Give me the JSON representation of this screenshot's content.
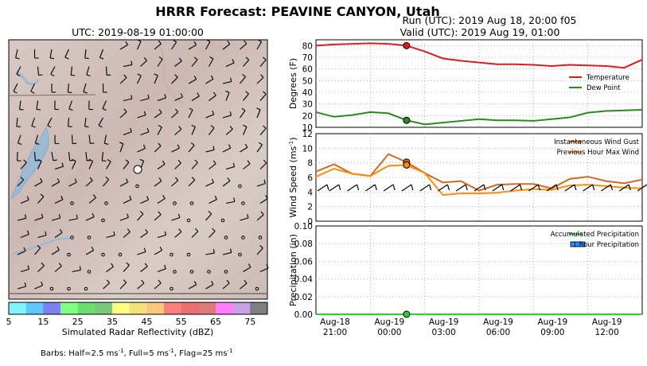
{
  "figure": {
    "title": "HRRR Forecast: PEAVINE CANYON, Utah",
    "run_line": "Run (UTC): 2019 Aug 18, 20:00 f05",
    "valid_line": "Valid (UTC): 2019 Aug 19, 01:00"
  },
  "map": {
    "title": "UTC: 2019-08-19 01:00:00",
    "colorbar_label": "Simulated Radar Reflectivity (dBZ)",
    "colorbar_ticks": [
      "5",
      "15",
      "25",
      "35",
      "45",
      "55",
      "65",
      "75"
    ],
    "colorbar_colors": [
      "#7ff4fb",
      "#5fc7fb",
      "#7f7ff4",
      "#80ff80",
      "#6edd6e",
      "#7dc87d",
      "#fdff7e",
      "#f3e17e",
      "#fdc77e",
      "#fe7e7e",
      "#e97171",
      "#dd7a7a",
      "#fe7efe",
      "#c7a1e2",
      "#7f7f7f"
    ],
    "barb_note_prefix": "Barbs: Half=2.5 ms",
    "barb_note_half_sup": "-1",
    "barb_note_mid": ", Full=5 ms",
    "barb_note_full_sup": "-1",
    "barb_note_mid2": ", Flag=25 ms",
    "barb_note_flag_sup": "-1"
  },
  "chart_data": [
    {
      "type": "line",
      "ylabel": "Degrees (F)",
      "ylim": [
        10,
        85
      ],
      "yticks": [
        10,
        20,
        30,
        40,
        50,
        60,
        70,
        80
      ],
      "grid": true,
      "legend_position": "right",
      "x_hours": [
        0,
        1,
        2,
        3,
        4,
        5,
        6,
        7,
        8,
        9,
        10,
        11,
        12,
        13,
        14,
        15,
        16,
        17,
        18
      ],
      "series": [
        {
          "name": "Temperature",
          "color": "#e31a1c",
          "values": [
            80,
            81,
            81.5,
            82,
            81.5,
            80,
            75,
            69,
            67,
            65.5,
            64,
            64,
            63.5,
            62.5,
            63.5,
            63,
            62.5,
            61,
            68
          ]
        },
        {
          "name": "Dew Point",
          "color": "#2a8a1f",
          "values": [
            23,
            19,
            20.5,
            23,
            22,
            16,
            12.5,
            14,
            15.5,
            17,
            16,
            16,
            15.5,
            17,
            18.5,
            22.5,
            24,
            24.5,
            25
          ]
        }
      ],
      "highlight_index": 5
    },
    {
      "type": "line",
      "ylabel": "Wind Speed (ms",
      "ylabel_sup": "-1",
      "ylabel_end": ")",
      "ylim": [
        0,
        12
      ],
      "yticks": [
        0,
        2,
        4,
        6,
        8,
        10,
        12
      ],
      "grid": true,
      "legend_position": "top-right",
      "x_hours": [
        0,
        1,
        2,
        3,
        4,
        5,
        6,
        7,
        8,
        9,
        10,
        11,
        12,
        13,
        14,
        15,
        16,
        17,
        18
      ],
      "series": [
        {
          "name": "Instantaneous Wind Gust",
          "color": "#d2691e",
          "values": [
            6.8,
            7.8,
            6.5,
            6.2,
            9.2,
            8.1,
            6.6,
            5.3,
            5.5,
            4.2,
            5.0,
            5.1,
            5.1,
            4.5,
            5.8,
            6.1,
            5.5,
            5.2,
            5.7
          ]
        },
        {
          "name": "Previous Hour Max Wind",
          "color": "#ff8c00",
          "values": [
            6.1,
            7.2,
            6.5,
            6.2,
            7.6,
            7.7,
            6.6,
            3.6,
            3.8,
            3.8,
            3.9,
            4.2,
            4.4,
            4.3,
            4.9,
            5.0,
            4.8,
            4.6,
            4.5
          ]
        }
      ],
      "highlight_index": 5
    },
    {
      "type": "line",
      "ylabel": "Precipitation (in)",
      "ylim": [
        0,
        0.1
      ],
      "yticks": [
        "0.00",
        "0.02",
        "0.04",
        "0.06",
        "0.08",
        "0.10"
      ],
      "grid": true,
      "legend_position": "top-right",
      "x_hours": [
        0,
        1,
        2,
        3,
        4,
        5,
        6,
        7,
        8,
        9,
        10,
        11,
        12,
        13,
        14,
        15,
        16,
        17,
        18
      ],
      "series": [
        {
          "name": "Accumulated Precipitation",
          "color": "#32cd32",
          "values": [
            0,
            0,
            0,
            0,
            0,
            0,
            0,
            0,
            0,
            0,
            0,
            0,
            0,
            0,
            0,
            0,
            0,
            0,
            0
          ]
        },
        {
          "name": "1 hour Precipitation",
          "color": "#1e90ff",
          "kind": "bar",
          "values": [
            0,
            0,
            0,
            0,
            0,
            0,
            0,
            0,
            0,
            0,
            0,
            0,
            0,
            0,
            0,
            0,
            0,
            0,
            0
          ]
        }
      ],
      "highlight_index": 5,
      "xtick_labels": [
        [
          "Aug-18",
          "21:00"
        ],
        [
          "Aug-19",
          "00:00"
        ],
        [
          "Aug-19",
          "03:00"
        ],
        [
          "Aug-19",
          "06:00"
        ],
        [
          "Aug-19",
          "09:00"
        ],
        [
          "Aug-19",
          "12:00"
        ]
      ]
    }
  ]
}
